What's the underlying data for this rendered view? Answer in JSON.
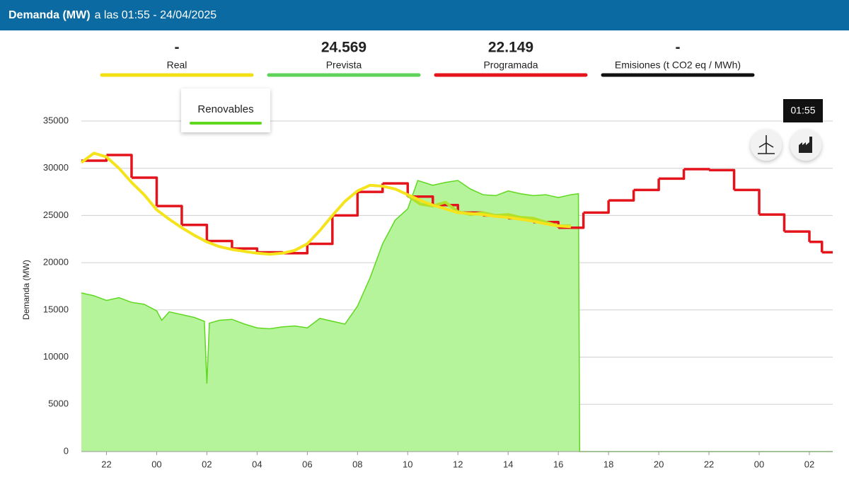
{
  "header": {
    "title": "Demanda (MW)",
    "subtitle": "a las 01:55 - 24/04/2025"
  },
  "indicators": [
    {
      "value": "-",
      "label": "Real",
      "color": "#f2e014"
    },
    {
      "value": "24.569",
      "label": "Prevista",
      "color": "#5ed35a"
    },
    {
      "value": "22.149",
      "label": "Programada",
      "color": "#e3141b"
    },
    {
      "value": "-",
      "label": "Emisiones (t CO2 eq / MWh)",
      "color": "#111111"
    }
  ],
  "time_badge": "01:55",
  "chart_data": {
    "type": "line",
    "ylabel": "Demanda (MW)",
    "xlim": [
      21,
      50.93
    ],
    "xticks": [
      22,
      {
        "value": 24,
        "label": "00"
      },
      {
        "value": 26,
        "label": "02"
      },
      {
        "value": 28,
        "label": "04"
      },
      {
        "value": 30,
        "label": "06"
      },
      {
        "value": 32,
        "label": "08"
      },
      {
        "value": 34,
        "label": "10"
      },
      {
        "value": 36,
        "label": "12"
      },
      {
        "value": 38,
        "label": "14"
      },
      {
        "value": 40,
        "label": "16"
      },
      {
        "value": 42,
        "label": "18"
      },
      {
        "value": 44,
        "label": "20"
      },
      {
        "value": 46,
        "label": "22"
      },
      {
        "value": 48,
        "label": "00"
      },
      {
        "value": 50,
        "label": "02"
      }
    ],
    "ylim": [
      0,
      35000
    ],
    "yticks": [
      0,
      5000,
      10000,
      15000,
      20000,
      25000,
      30000,
      35000
    ],
    "grid": true,
    "series": [
      {
        "name": "Renovables",
        "style": "area",
        "color": "#5fd81f",
        "fill": "#b5f49b",
        "x": [
          21,
          21.5,
          22,
          22.5,
          23,
          23.5,
          24,
          24.2,
          24.5,
          25,
          25.5,
          25.9,
          26,
          26.1,
          26.5,
          27,
          27.5,
          28,
          28.5,
          29,
          29.5,
          30,
          30.5,
          31,
          31.5,
          32,
          32.5,
          33,
          33.5,
          34,
          34.4,
          35,
          35.5,
          36,
          36.5,
          37,
          37.5,
          38,
          38.5,
          39,
          39.5,
          40,
          40.5,
          40.8,
          40.85,
          50.93
        ],
        "values": [
          16800,
          16500,
          16000,
          16300,
          15800,
          15600,
          14900,
          13900,
          14800,
          14500,
          14200,
          13800,
          7200,
          13600,
          13900,
          14000,
          13500,
          13100,
          13000,
          13200,
          13300,
          13100,
          14100,
          13800,
          13500,
          15400,
          18400,
          22000,
          24500,
          25700,
          28700,
          28200,
          28500,
          28700,
          27800,
          27200,
          27100,
          27600,
          27300,
          27100,
          27200,
          26900,
          27200,
          27300,
          0,
          0
        ]
      },
      {
        "name": "Programada",
        "style": "step",
        "color": "#e3141b",
        "x": [
          21,
          22,
          23,
          24,
          25,
          26,
          27,
          28,
          29,
          30,
          31,
          32,
          33,
          34,
          35,
          36,
          37,
          38,
          39,
          40,
          41,
          42,
          43,
          44,
          45,
          46,
          47,
          48,
          49,
          50,
          50.5
        ],
        "values": [
          30800,
          31400,
          29000,
          26000,
          24000,
          22300,
          21500,
          21100,
          21000,
          22000,
          25000,
          27500,
          28400,
          27000,
          26100,
          25300,
          25000,
          24700,
          24300,
          23700,
          25300,
          26600,
          27700,
          28900,
          29900,
          29800,
          27700,
          25100,
          23300,
          22200,
          21100
        ]
      },
      {
        "name": "Prevista",
        "style": "line",
        "color": "#b3e02a",
        "x": [
          34,
          34.5,
          35,
          35.5,
          36,
          36.5,
          37,
          37.5,
          38,
          38.5,
          39,
          39.5,
          40,
          40.5
        ],
        "values": [
          27100,
          26200,
          26000,
          26400,
          25400,
          25100,
          25300,
          25000,
          25100,
          24800,
          24700,
          24300,
          23900,
          23900
        ]
      },
      {
        "name": "Real",
        "style": "line",
        "color": "#f5e31c",
        "x": [
          21,
          21.5,
          22,
          22.5,
          23,
          23.5,
          24,
          24.5,
          25,
          25.5,
          26,
          26.5,
          27,
          27.5,
          28,
          28.5,
          29,
          29.5,
          30,
          30.5,
          31,
          31.5,
          32,
          32.5,
          33,
          33.5,
          34,
          34.5,
          35,
          35.5,
          36,
          36.5,
          37,
          37.5,
          38,
          38.5,
          39,
          39.5,
          40,
          40.5
        ],
        "values": [
          30600,
          31600,
          31200,
          30000,
          28500,
          27200,
          25600,
          24600,
          23700,
          22900,
          22200,
          21700,
          21400,
          21200,
          21000,
          20900,
          21000,
          21300,
          22000,
          23400,
          25000,
          26500,
          27600,
          28200,
          28100,
          27800,
          27200,
          26600,
          26100,
          25700,
          25300,
          25200,
          25100,
          24900,
          24800,
          24600,
          24400,
          24100,
          23900,
          23800
        ]
      }
    ]
  }
}
